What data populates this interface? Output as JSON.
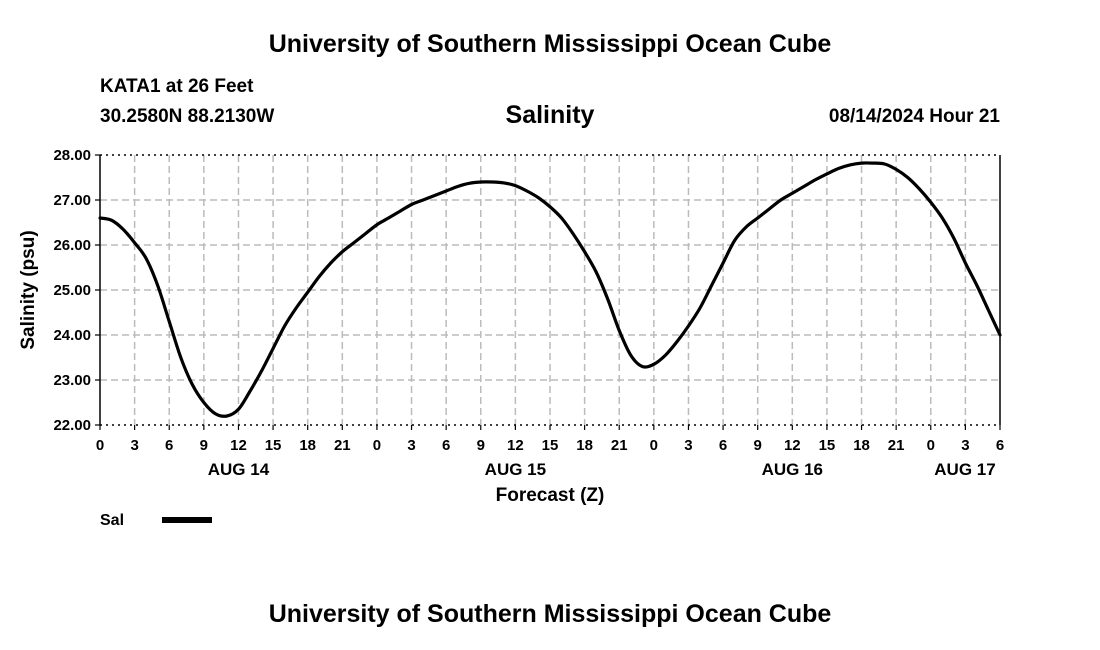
{
  "page": {
    "title_top": "University of Southern Mississippi Ocean Cube",
    "title_bottom": "University of Southern Mississippi Ocean Cube",
    "station": "KATA1 at 26 Feet",
    "coords": "30.2580N  88.2130W",
    "variable": "Salinity",
    "issued": "08/14/2024 Hour 21"
  },
  "colors": {
    "line": "#000000",
    "grid": "#bbbbbb",
    "frame": "#000000"
  },
  "chart_data": {
    "type": "line",
    "title": "Salinity",
    "xlabel": "Forecast (Z)",
    "ylabel": "Salinity (psu)",
    "xlim": [
      0,
      78
    ],
    "ylim": [
      22.0,
      28.0
    ],
    "grid": true,
    "x_tick_labels": [
      "0",
      "3",
      "6",
      "9",
      "12",
      "15",
      "18",
      "21",
      "0",
      "3",
      "6",
      "9",
      "12",
      "15",
      "18",
      "21",
      "0",
      "3",
      "6",
      "9",
      "12",
      "15",
      "18",
      "21",
      "0",
      "3",
      "6"
    ],
    "y_tick_labels": [
      "22.00",
      "23.00",
      "24.00",
      "25.00",
      "26.00",
      "27.00",
      "28.00"
    ],
    "date_labels": [
      {
        "label": "AUG 14",
        "hour": 12
      },
      {
        "label": "AUG 15",
        "hour": 36
      },
      {
        "label": "AUG 16",
        "hour": 60
      },
      {
        "label": "AUG 17",
        "hour": 78
      }
    ],
    "legend": [
      {
        "name": "Sal",
        "placement": "bottom-left"
      }
    ],
    "series": [
      {
        "name": "Sal",
        "x": [
          0,
          1,
          2,
          3,
          4,
          5,
          6,
          7,
          8,
          9,
          10,
          11,
          12,
          13,
          14,
          15,
          16,
          17,
          18,
          19,
          20,
          21,
          22,
          23,
          24,
          25,
          26,
          27,
          28,
          29,
          30,
          31,
          32,
          33,
          34,
          35,
          36,
          37,
          38,
          39,
          40,
          41,
          42,
          43,
          44,
          45,
          46,
          47,
          48,
          49,
          50,
          51,
          52,
          53,
          54,
          55,
          56,
          57,
          58,
          59,
          60,
          61,
          62,
          63,
          64,
          65,
          66,
          67,
          68,
          69,
          70,
          71,
          72,
          73,
          74,
          75,
          76,
          77,
          78
        ],
        "values": [
          26.6,
          26.55,
          26.35,
          26.05,
          25.7,
          25.1,
          24.3,
          23.5,
          22.9,
          22.5,
          22.25,
          22.2,
          22.35,
          22.75,
          23.2,
          23.7,
          24.2,
          24.6,
          24.95,
          25.3,
          25.6,
          25.85,
          26.05,
          26.25,
          26.45,
          26.6,
          26.75,
          26.9,
          27.0,
          27.1,
          27.2,
          27.3,
          27.37,
          27.4,
          27.4,
          27.38,
          27.32,
          27.2,
          27.05,
          26.85,
          26.6,
          26.25,
          25.85,
          25.4,
          24.8,
          24.1,
          23.55,
          23.3,
          23.35,
          23.55,
          23.85,
          24.2,
          24.6,
          25.1,
          25.6,
          26.1,
          26.4,
          26.6,
          26.8,
          27.0,
          27.15,
          27.3,
          27.45,
          27.58,
          27.7,
          27.78,
          27.82,
          27.82,
          27.8,
          27.68,
          27.5,
          27.25,
          26.95,
          26.6,
          26.15,
          25.6,
          25.1,
          24.55,
          24.0
        ]
      }
    ]
  }
}
